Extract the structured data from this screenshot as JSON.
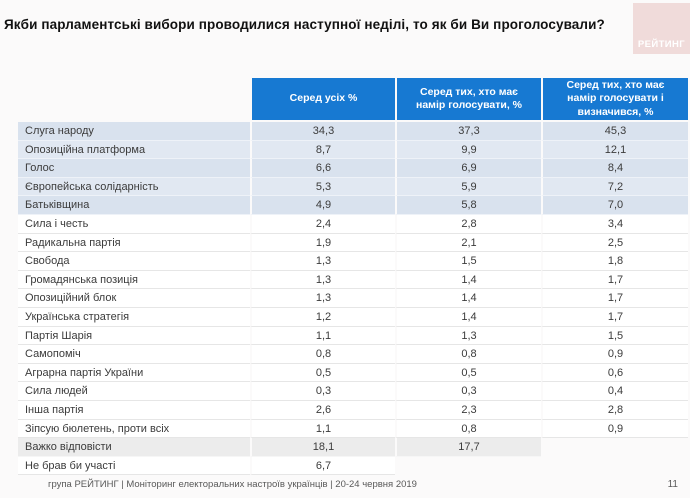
{
  "title": "Якби парламентські вибори проводилися наступної неділі, то як би Ви проголосували?",
  "logo": {
    "text": "РЕЙТИНГ",
    "bg_color": "#f0dbda",
    "text_color": "#ffffff"
  },
  "colors": {
    "header_blue": "#1779d2",
    "highlight_row_blue": "#d9e2ee",
    "muted_row_gray": "#ececec",
    "page_background": "#fbfafa"
  },
  "table": {
    "columns": [
      "Серед усіх %",
      "Серед тих, хто має намір голосувати, %",
      "Серед тих, хто має намір голосувати і визначився, %"
    ],
    "rows": [
      {
        "label": "Слуга народу",
        "values": [
          "34,3",
          "37,3",
          "45,3"
        ],
        "style": "highlight"
      },
      {
        "label": "Опозиційна платформа",
        "values": [
          "8,7",
          "9,9",
          "12,1"
        ],
        "style": "highlight"
      },
      {
        "label": "Голос",
        "values": [
          "6,6",
          "6,9",
          "8,4"
        ],
        "style": "highlight"
      },
      {
        "label": "Європейська солідарність",
        "values": [
          "5,3",
          "5,9",
          "7,2"
        ],
        "style": "highlight"
      },
      {
        "label": "Батьківщина",
        "values": [
          "4,9",
          "5,8",
          "7,0"
        ],
        "style": "highlight"
      },
      {
        "label": "Сила і честь",
        "values": [
          "2,4",
          "2,8",
          "3,4"
        ],
        "style": "plain"
      },
      {
        "label": "Радикальна партія",
        "values": [
          "1,9",
          "2,1",
          "2,5"
        ],
        "style": "plain"
      },
      {
        "label": "Свобода",
        "values": [
          "1,3",
          "1,5",
          "1,8"
        ],
        "style": "plain"
      },
      {
        "label": "Громадянська позиція",
        "values": [
          "1,3",
          "1,4",
          "1,7"
        ],
        "style": "plain"
      },
      {
        "label": "Опозиційний блок",
        "values": [
          "1,3",
          "1,4",
          "1,7"
        ],
        "style": "plain"
      },
      {
        "label": "Українська стратегія",
        "values": [
          "1,2",
          "1,4",
          "1,7"
        ],
        "style": "plain"
      },
      {
        "label": "Партія Шарія",
        "values": [
          "1,1",
          "1,3",
          "1,5"
        ],
        "style": "plain"
      },
      {
        "label": "Самопоміч",
        "values": [
          "0,8",
          "0,8",
          "0,9"
        ],
        "style": "plain"
      },
      {
        "label": "Аграрна партія України",
        "values": [
          "0,5",
          "0,5",
          "0,6"
        ],
        "style": "plain"
      },
      {
        "label": "Сила людей",
        "values": [
          "0,3",
          "0,3",
          "0,4"
        ],
        "style": "plain"
      },
      {
        "label": "Інша партія",
        "values": [
          "2,6",
          "2,3",
          "2,8"
        ],
        "style": "plain"
      },
      {
        "label": "Зіпсую бюлетень, проти всіх",
        "values": [
          "1,1",
          "0,8",
          "0,9"
        ],
        "style": "plain"
      },
      {
        "label": "Важко відповісти",
        "values": [
          "18,1",
          "17,7",
          null
        ],
        "style": "muted"
      },
      {
        "label": "Не брав би участі",
        "values": [
          "6,7",
          null,
          null
        ],
        "style": "plain"
      }
    ]
  },
  "footer": {
    "text": "група РЕЙТИНГ | Моніторинг електоральних настроїв українців | 20-24 червня 2019",
    "page": "11"
  },
  "chart_data": {
    "type": "table",
    "title": "Якби парламентські вибори проводилися наступної неділі, то як би Ви проголосували?",
    "categories": [
      "Слуга народу",
      "Опозиційна платформа",
      "Голос",
      "Європейська солідарність",
      "Батьківщина",
      "Сила і честь",
      "Радикальна партія",
      "Свобода",
      "Громадянська позиція",
      "Опозиційний блок",
      "Українська стратегія",
      "Партія Шарія",
      "Самопоміч",
      "Аграрна партія України",
      "Сила людей",
      "Інша партія",
      "Зіпсую бюлетень, проти всіх",
      "Важко відповісти",
      "Не брав би участі"
    ],
    "series": [
      {
        "name": "Серед усіх %",
        "values": [
          34.3,
          8.7,
          6.6,
          5.3,
          4.9,
          2.4,
          1.9,
          1.3,
          1.3,
          1.3,
          1.2,
          1.1,
          0.8,
          0.5,
          0.3,
          2.6,
          1.1,
          18.1,
          6.7
        ]
      },
      {
        "name": "Серед тих, хто має намір голосувати, %",
        "values": [
          37.3,
          9.9,
          6.9,
          5.9,
          5.8,
          2.8,
          2.1,
          1.5,
          1.4,
          1.4,
          1.4,
          1.3,
          0.8,
          0.5,
          0.3,
          2.3,
          0.8,
          17.7,
          null
        ]
      },
      {
        "name": "Серед тих, хто має намір голосувати і визначився, %",
        "values": [
          45.3,
          12.1,
          8.4,
          7.2,
          7.0,
          3.4,
          2.5,
          1.8,
          1.7,
          1.7,
          1.7,
          1.5,
          0.9,
          0.6,
          0.4,
          2.8,
          0.9,
          null,
          null
        ]
      }
    ],
    "layout": {
      "highlighted_rows": 5,
      "legend_position": "header",
      "grid": true
    }
  }
}
